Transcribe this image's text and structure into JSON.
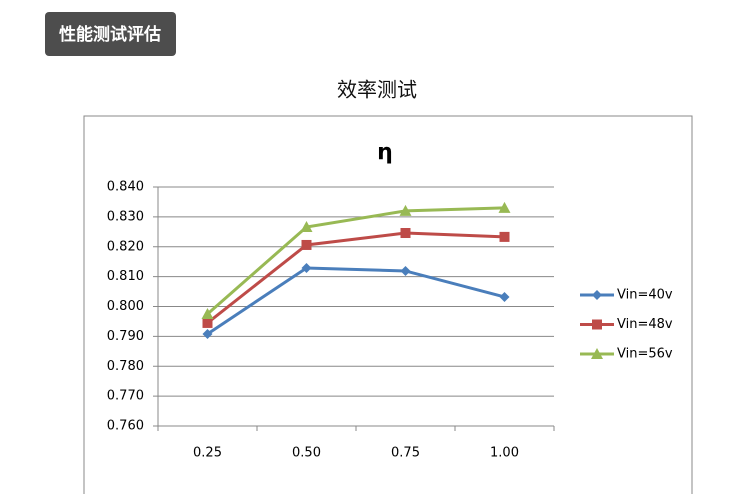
{
  "page": {
    "badge": "性能测试评估",
    "heading": "效率测试"
  },
  "chart_data": {
    "type": "line",
    "title": "η",
    "categories": [
      "0.25",
      "0.50",
      "0.75",
      "1.00"
    ],
    "series": [
      {
        "name": "Vin=40v",
        "color": "#4a7ebb",
        "marker": "diamond",
        "values": [
          0.7908,
          0.8129,
          0.8119,
          0.8032
        ]
      },
      {
        "name": "Vin=48v",
        "color": "#be4b48",
        "marker": "square",
        "values": [
          0.7945,
          0.8206,
          0.8246,
          0.8233
        ]
      },
      {
        "name": "Vin=56v",
        "color": "#98b954",
        "marker": "triangle",
        "values": [
          0.7975,
          0.8266,
          0.832,
          0.833
        ]
      }
    ],
    "ylim": [
      0.76,
      0.84
    ],
    "yticks": [
      {
        "value": 0.76,
        "label": "0.760"
      },
      {
        "value": 0.77,
        "label": "0.770"
      },
      {
        "value": 0.78,
        "label": "0.780"
      },
      {
        "value": 0.79,
        "label": "0.790"
      },
      {
        "value": 0.8,
        "label": "0.800"
      },
      {
        "value": 0.81,
        "label": "0.810"
      },
      {
        "value": 0.82,
        "label": "0.820"
      },
      {
        "value": 0.83,
        "label": "0.830"
      },
      {
        "value": 0.84,
        "label": "0.840"
      }
    ],
    "grid": true,
    "legend": "right"
  }
}
